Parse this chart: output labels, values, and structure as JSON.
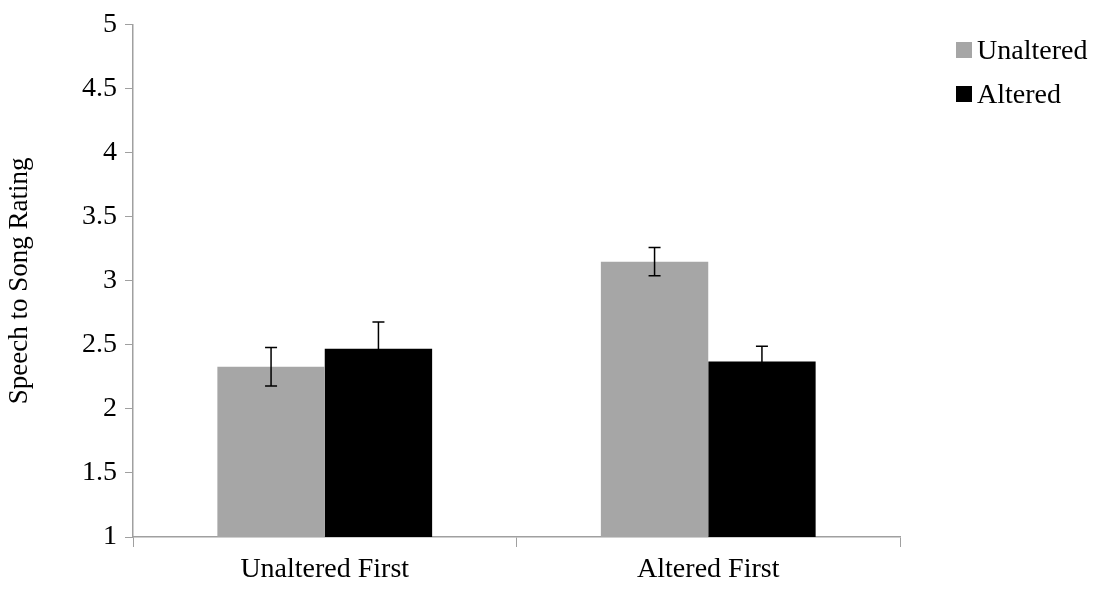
{
  "chart_data": {
    "type": "bar",
    "ylabel": "Speech to Song Rating",
    "categories": [
      "Unaltered First",
      "Altered First"
    ],
    "series": [
      {
        "name": "Unaltered",
        "color": "#a6a6a6",
        "values": [
          2.33,
          3.15
        ],
        "errors": [
          0.15,
          0.11
        ]
      },
      {
        "name": "Altered",
        "color": "#000000",
        "values": [
          2.47,
          2.37
        ],
        "errors": [
          0.21,
          0.12
        ]
      }
    ],
    "ylim": [
      1,
      5
    ],
    "yticks": [
      1,
      1.5,
      2,
      2.5,
      3,
      3.5,
      4,
      4.5,
      5
    ],
    "grid": false,
    "legend": "top right"
  }
}
